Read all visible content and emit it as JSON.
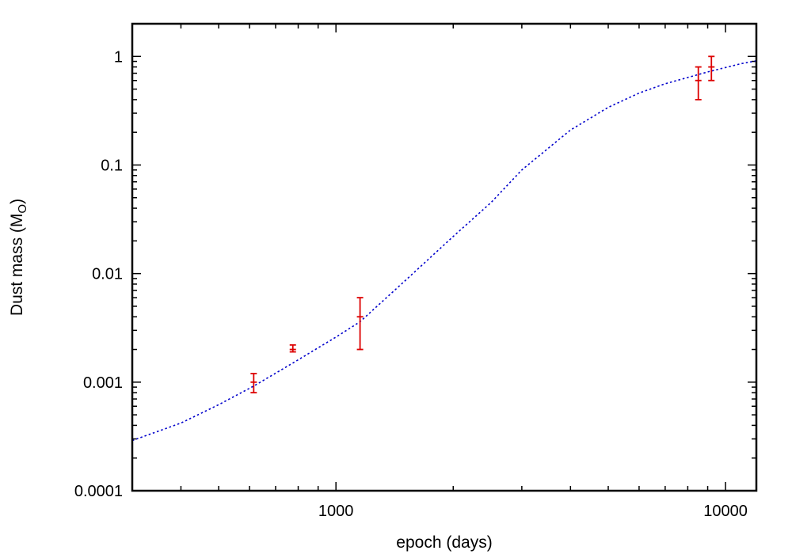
{
  "chart_data": {
    "type": "scatter",
    "xlabel": "epoch (days)",
    "ylabel_main": "Dust mass (M",
    "ylabel_sub": "O",
    "ylabel_close": ")",
    "xscale": "log",
    "yscale": "log",
    "xlim": [
      300,
      12000
    ],
    "ylim": [
      0.0001,
      2
    ],
    "grid": false,
    "x_ticks": [
      {
        "value": 1000,
        "label": "1000"
      },
      {
        "value": 10000,
        "label": "10000"
      }
    ],
    "y_ticks": [
      {
        "value": 0.0001,
        "label": "0.0001"
      },
      {
        "value": 0.001,
        "label": "0.001"
      },
      {
        "value": 0.01,
        "label": "0.01"
      },
      {
        "value": 0.1,
        "label": "0.1"
      },
      {
        "value": 1,
        "label": "1"
      }
    ],
    "series": [
      {
        "kind": "errorbar",
        "color": "#dd0000",
        "points": [
          {
            "x": 615,
            "y": 0.001,
            "ylo": 0.0008,
            "yhi": 0.0012
          },
          {
            "x": 775,
            "y": 0.002,
            "ylo": 0.0019,
            "yhi": 0.0022
          },
          {
            "x": 1153,
            "y": 0.004,
            "ylo": 0.002,
            "yhi": 0.006
          },
          {
            "x": 8515,
            "y": 0.6,
            "ylo": 0.4,
            "yhi": 0.8
          },
          {
            "x": 9200,
            "y": 0.8,
            "ylo": 0.6,
            "yhi": 1.0
          }
        ]
      },
      {
        "kind": "line",
        "style": "dotted",
        "color": "#0000cc",
        "points": [
          {
            "x": 300,
            "y": 0.00029
          },
          {
            "x": 400,
            "y": 0.00042
          },
          {
            "x": 500,
            "y": 0.00062
          },
          {
            "x": 615,
            "y": 0.00092
          },
          {
            "x": 775,
            "y": 0.0015
          },
          {
            "x": 1000,
            "y": 0.0026
          },
          {
            "x": 1153,
            "y": 0.0036
          },
          {
            "x": 1500,
            "y": 0.0085
          },
          {
            "x": 2000,
            "y": 0.022
          },
          {
            "x": 2500,
            "y": 0.045
          },
          {
            "x": 3000,
            "y": 0.09
          },
          {
            "x": 4000,
            "y": 0.21
          },
          {
            "x": 5000,
            "y": 0.34
          },
          {
            "x": 6000,
            "y": 0.46
          },
          {
            "x": 7000,
            "y": 0.56
          },
          {
            "x": 8000,
            "y": 0.64
          },
          {
            "x": 9000,
            "y": 0.72
          },
          {
            "x": 10000,
            "y": 0.79
          },
          {
            "x": 11000,
            "y": 0.86
          },
          {
            "x": 12000,
            "y": 0.91
          }
        ]
      }
    ]
  }
}
